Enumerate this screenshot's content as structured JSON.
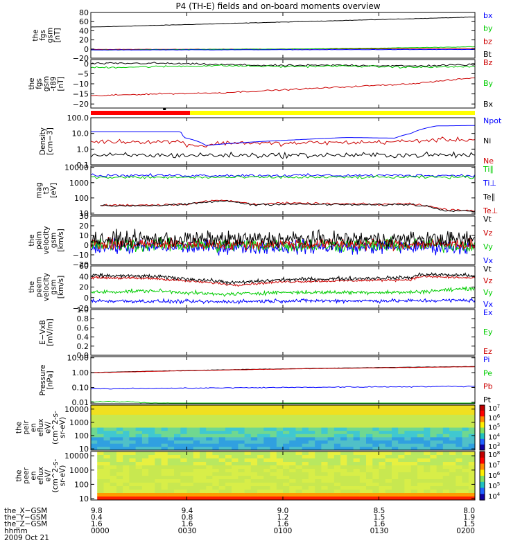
{
  "title": "P4 (TH-E) fields and on-board moments overview",
  "colors": {
    "black": "#000000",
    "red": "#cc0000",
    "green": "#00cc00",
    "blue": "#0000ff",
    "mode_red": "#ff0000",
    "mode_yellow": "#ffff00",
    "frame": "#000000"
  },
  "chart_data": [
    {
      "type": "line",
      "id": "p1",
      "ylabel": [
        "the",
        "fgs",
        "gsm",
        "[nT]"
      ],
      "ylim": [
        -20,
        80
      ],
      "ticks": [
        "80",
        "60",
        "40",
        "20",
        "0",
        "−20"
      ],
      "tick_values": [
        80,
        60,
        40,
        20,
        0,
        -20
      ],
      "series": [
        {
          "name": "Bt",
          "color": "#000000",
          "x": [
            0,
            120
          ],
          "y": [
            48,
            70
          ],
          "noise": 0.4
        },
        {
          "name": "bz",
          "color": "#cc0000",
          "x": [
            0,
            120
          ],
          "y": [
            -1,
            1
          ],
          "noise": 0.3
        },
        {
          "name": "by",
          "color": "#00cc00",
          "x": [
            0,
            30,
            60,
            90,
            120
          ],
          "y": [
            -2,
            -1,
            0,
            2,
            5
          ],
          "noise": 0.4
        },
        {
          "name": "bx",
          "color": "#0000ff",
          "x": [
            0,
            120
          ],
          "y": [
            -2,
            -1
          ],
          "noise": 0.3
        }
      ]
    },
    {
      "type": "line",
      "id": "p2",
      "ylabel": [
        "the",
        "fgs",
        "gsm",
        "-t89",
        "[nT]"
      ],
      "ylim": [
        -22,
        2
      ],
      "ticks": [
        "0",
        "−5",
        "−10",
        "−15",
        "−20"
      ],
      "tick_values": [
        0,
        -5,
        -10,
        -15,
        -20
      ],
      "series": [
        {
          "name": "Bx",
          "color": "#000000",
          "x": [
            0,
            20,
            40,
            60,
            80,
            100,
            120
          ],
          "y": [
            0,
            0.2,
            -0.5,
            -1,
            -0.8,
            -1.2,
            -0.5
          ],
          "noise": 0.4
        },
        {
          "name": "By",
          "color": "#00cc00",
          "x": [
            0,
            20,
            40,
            60,
            80,
            100,
            120
          ],
          "y": [
            -2,
            -1.5,
            -1,
            -1.5,
            -1.2,
            -1.8,
            -1.5
          ],
          "noise": 0.4
        },
        {
          "name": "Bz",
          "color": "#cc0000",
          "x": [
            0,
            20,
            40,
            60,
            80,
            100,
            120
          ],
          "y": [
            -16,
            -15,
            -14.5,
            -13,
            -11.5,
            -10,
            -7
          ],
          "noise": 0.3
        }
      ]
    },
    {
      "type": "line",
      "id": "p3",
      "log": true,
      "ylabel": [
        "Density",
        "[cm−3]"
      ],
      "ylim": [
        0.1,
        100
      ],
      "ticks": [
        "100.0",
        "10.0",
        "1.0",
        "0.1"
      ],
      "tick_values": [
        100,
        10,
        1,
        0.1
      ],
      "series": [
        {
          "name": "Ne",
          "color": "#cc0000",
          "x": [
            0,
            28,
            30,
            32,
            36,
            40,
            48,
            60,
            70,
            80,
            90,
            100,
            110,
            120
          ],
          "y": [
            3.0,
            3.0,
            2.0,
            1.8,
            1.6,
            2.4,
            2.6,
            2.2,
            2.6,
            2.6,
            2.8,
            3.2,
            4.0,
            4.0
          ],
          "noise": 0.12
        },
        {
          "name": "Ni",
          "color": "#000000",
          "x": [
            0,
            120
          ],
          "y": [
            0.4,
            0.42
          ],
          "noise": 0.15
        },
        {
          "name": "Npot",
          "color": "#0000ff",
          "x": [
            0,
            28,
            29,
            36,
            50,
            65,
            80,
            95,
            100,
            108,
            120
          ],
          "y": [
            13,
            13,
            5.5,
            1.7,
            2.8,
            4.0,
            5.5,
            5.0,
            10,
            30,
            32
          ],
          "noise": 0.0
        }
      ]
    },
    {
      "type": "line",
      "id": "p4",
      "log": true,
      "ylabel": [
        "mag",
        "t3",
        "[eV]"
      ],
      "ylim": [
        8,
        12000
      ],
      "ticks": [
        "10000",
        "1000",
        "100",
        "10"
      ],
      "tick_values": [
        10000,
        1000,
        100,
        10
      ],
      "series": [
        {
          "name": "Te⊥",
          "color": "#cc0000",
          "x": [
            3,
            20,
            30,
            40,
            45,
            50,
            60,
            70,
            80,
            90,
            100,
            105,
            110,
            120
          ],
          "y": [
            33,
            35,
            40,
            70,
            60,
            40,
            45,
            42,
            40,
            38,
            42,
            30,
            18,
            15
          ],
          "noise": 0.06
        },
        {
          "name": "Te∥",
          "color": "#000000",
          "x": [
            3,
            20,
            30,
            40,
            45,
            50,
            60,
            70,
            80,
            90,
            100,
            105,
            110,
            120
          ],
          "y": [
            30,
            32,
            37,
            62,
            55,
            36,
            40,
            38,
            36,
            35,
            38,
            28,
            16,
            14
          ],
          "noise": 0.06
        },
        {
          "name": "Ti⊥",
          "color": "#0000ff",
          "x": [
            0,
            120
          ],
          "y": [
            3000,
            3000
          ],
          "noise": 0.08
        },
        {
          "name": "Ti∥",
          "color": "#00cc00",
          "x": [
            0,
            120
          ],
          "y": [
            2200,
            2300
          ],
          "noise": 0.08
        }
      ]
    },
    {
      "type": "line",
      "id": "p5",
      "ylabel": [
        "the",
        "peim",
        "velocity",
        "gsm",
        "[km/s]"
      ],
      "ylim": [
        -20,
        30
      ],
      "ticks": [
        "30",
        "20",
        "10",
        "0",
        "−10",
        "−20"
      ],
      "tick_values": [
        30,
        20,
        10,
        0,
        -10,
        -20
      ],
      "series": [
        {
          "name": "Vx",
          "color": "#0000ff",
          "x": [
            0,
            120
          ],
          "y": [
            -2,
            -2
          ],
          "noise": 6
        },
        {
          "name": "Vy",
          "color": "#00cc00",
          "x": [
            0,
            120
          ],
          "y": [
            0,
            0
          ],
          "noise": 6
        },
        {
          "name": "Vz",
          "color": "#cc0000",
          "x": [
            0,
            120
          ],
          "y": [
            1,
            1
          ],
          "noise": 5
        },
        {
          "name": "Vt",
          "color": "#000000",
          "x": [
            0,
            120
          ],
          "y": [
            6,
            6
          ],
          "noise": 7
        }
      ]
    },
    {
      "type": "line",
      "id": "p6",
      "ylabel": [
        "the",
        "peem",
        "velocity",
        "gsm",
        "[km/s]"
      ],
      "ylim": [
        -20,
        60
      ],
      "ticks": [
        "60",
        "40",
        "20",
        "0",
        "−20"
      ],
      "tick_values": [
        60,
        40,
        20,
        0,
        -20
      ],
      "series": [
        {
          "name": "Vx",
          "color": "#0000ff",
          "x": [
            0,
            40,
            60,
            100,
            120
          ],
          "y": [
            -6,
            -8,
            -6,
            -6,
            -5
          ],
          "noise": 3
        },
        {
          "name": "Vy",
          "color": "#00cc00",
          "x": [
            0,
            20,
            40,
            60,
            100,
            120
          ],
          "y": [
            10,
            13,
            6,
            10,
            10,
            18
          ],
          "noise": 3
        },
        {
          "name": "Vz",
          "color": "#cc0000",
          "x": [
            0,
            20,
            38,
            45,
            60,
            80,
            100,
            103,
            120
          ],
          "y": [
            38,
            36,
            28,
            24,
            30,
            32,
            34,
            40,
            37
          ],
          "noise": 2
        },
        {
          "name": "Vt",
          "color": "#000000",
          "x": [
            0,
            20,
            38,
            45,
            60,
            80,
            100,
            103,
            120
          ],
          "y": [
            42,
            40,
            32,
            28,
            34,
            36,
            38,
            44,
            42
          ],
          "noise": 3
        }
      ]
    },
    {
      "type": "line",
      "id": "p7",
      "ylabel": [
        "E−VxB",
        "[mV/m]"
      ],
      "ylim": [
        0,
        1
      ],
      "ticks": [
        "1.0",
        "0.8",
        "0.6",
        "0.4",
        "0.2",
        "0.0"
      ],
      "tick_values": [
        1,
        0.8,
        0.6,
        0.4,
        0.2,
        0
      ],
      "series": [
        {
          "name": "Ez",
          "color": "#cc0000",
          "x": [],
          "y": []
        },
        {
          "name": "Ey",
          "color": "#00cc00",
          "x": [],
          "y": []
        },
        {
          "name": "Ex",
          "color": "#0000ff",
          "x": [],
          "y": []
        }
      ]
    },
    {
      "type": "line",
      "id": "p8",
      "log": true,
      "ylabel": [
        "Pressure",
        "[nPa]"
      ],
      "ylim": [
        0.008,
        12
      ],
      "ticks": [
        "10.00",
        "1.00",
        "0.10",
        "0.01"
      ],
      "tick_values": [
        10,
        1,
        0.1,
        0.01
      ],
      "series": [
        {
          "name": "Pt",
          "color": "#000000",
          "x": [
            0,
            120
          ],
          "y": [
            1.0,
            2.6
          ],
          "noise": 0.01
        },
        {
          "name": "Pb",
          "color": "#cc0000",
          "x": [
            0,
            120
          ],
          "y": [
            0.97,
            2.5
          ],
          "noise": 0.01
        },
        {
          "name": "Pe",
          "color": "#00cc00",
          "x": [
            0,
            10,
            20,
            30,
            120
          ],
          "y": [
            0.011,
            0.011,
            0.009,
            0.008,
            0.008
          ],
          "noise": 0.03
        },
        {
          "name": "Pi",
          "color": "#0000ff",
          "x": [
            0,
            120
          ],
          "y": [
            0.08,
            0.12
          ],
          "noise": 0.03
        }
      ]
    },
    {
      "type": "heatmap",
      "id": "s1",
      "log": true,
      "ylabel": [
        "the",
        "peir",
        "en",
        "eflux",
        "eV/",
        "(cm^2-s-",
        "sr-eV)"
      ],
      "ylim": [
        8,
        20000
      ],
      "ticks": [
        "10000",
        "1000",
        "100",
        "10"
      ],
      "tick_values": [
        10000,
        1000,
        100,
        10
      ],
      "colorbar": {
        "labels": [
          "7",
          "6",
          "5",
          "4",
          "3"
        ],
        "base": "10"
      }
    },
    {
      "type": "heatmap",
      "id": "s2",
      "log": true,
      "ylabel": [
        "the",
        "peer",
        "en",
        "eflux",
        "eV/",
        "(cm^2-s-",
        "sr-eV)"
      ],
      "ylim": [
        8,
        20000
      ],
      "ticks": [
        "10000",
        "1000",
        "100",
        "10"
      ],
      "tick_values": [
        10000,
        1000,
        100,
        10
      ],
      "colorbar": {
        "labels": [
          "8",
          "7",
          "6",
          "5",
          "4"
        ],
        "base": "10"
      }
    }
  ],
  "xaxis": {
    "rows": [
      {
        "label": "the_X−GSM",
        "values": [
          "9.8",
          "9.4",
          "9.0",
          "8.5",
          "8.0"
        ]
      },
      {
        "label": "the_Y−GSM",
        "values": [
          "0.4",
          "0.8",
          "1.2",
          "1.5",
          "1.9"
        ]
      },
      {
        "label": "the_Z−GSM",
        "values": [
          "1.6",
          "1.6",
          "1.6",
          "1.6",
          "1.5"
        ]
      },
      {
        "label": "hhmm",
        "values": [
          "0000",
          "0030",
          "0100",
          "0130",
          "0200"
        ]
      }
    ],
    "date": "2009 Oct 21",
    "range_minutes": [
      0,
      120
    ],
    "tick_minutes": [
      0,
      30,
      60,
      90,
      120
    ]
  },
  "mode_bar": {
    "red_until_minute": 31,
    "black_marker_minute": 23
  }
}
